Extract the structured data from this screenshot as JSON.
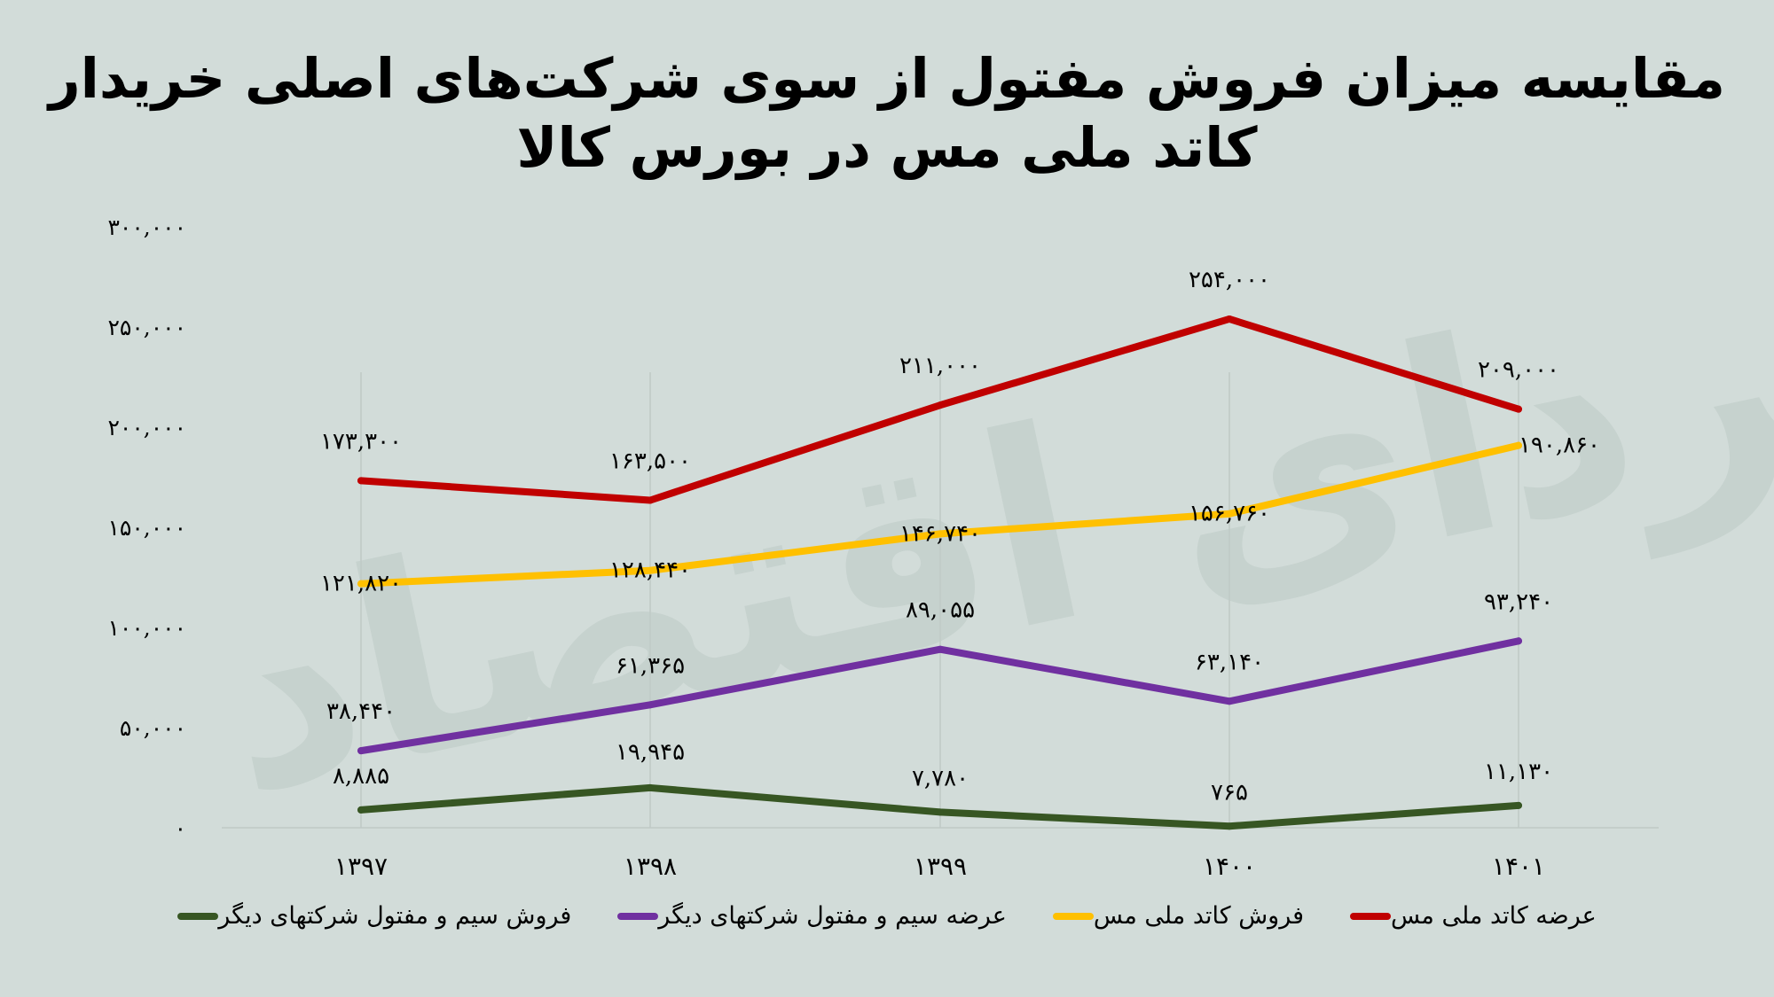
{
  "title_line1": "مقایسه میزان فروش مفتول از سوی شرکت‌های اصلی خریدار",
  "title_line2": "کاتد ملی مس در بورس کالا",
  "chart_data": {
    "type": "line",
    "title": "مقایسه میزان فروش مفتول از سوی شرکت‌های اصلی خریدار کاتد ملی مس در بورس کالا",
    "categories": [
      "۱۳۹۷",
      "۱۳۹۸",
      "۱۳۹۹",
      "۱۴۰۰",
      "۱۴۰۱"
    ],
    "ylim": [
      0,
      300000
    ],
    "yticks": [
      0,
      50000,
      100000,
      150000,
      200000,
      250000,
      300000
    ],
    "ytick_labels": [
      "۰",
      "۵۰,۰۰۰",
      "۱۰۰,۰۰۰",
      "۱۵۰,۰۰۰",
      "۲۰۰,۰۰۰",
      "۲۵۰,۰۰۰",
      "۳۰۰,۰۰۰"
    ],
    "grid": "vertical",
    "legend_position": "bottom",
    "series": [
      {
        "name": "عرضه کاتد ملی مس",
        "color": "#c00000",
        "values": [
          173300,
          163500,
          211000,
          254000,
          209000
        ],
        "labels": [
          "۱۷۳,۳۰۰",
          "۱۶۳,۵۰۰",
          "۲۱۱,۰۰۰",
          "۲۵۴,۰۰۰",
          "۲۰۹,۰۰۰"
        ]
      },
      {
        "name": "فروش کاتد ملی مس",
        "color": "#ffc000",
        "values": [
          121820,
          128440,
          146740,
          156760,
          190860
        ],
        "labels": [
          "۱۲۱,۸۲۰",
          "۱۲۸,۴۴۰",
          "۱۴۶,۷۴۰",
          "۱۵۶,۷۶۰",
          "۱۹۰,۸۶۰"
        ]
      },
      {
        "name": "عرضه سیم و مفتول شرکتهای دیگر",
        "color": "#7030a0",
        "values": [
          38440,
          61365,
          89055,
          63140,
          93240
        ],
        "labels": [
          "۳۸,۴۴۰",
          "۶۱,۳۶۵",
          "۸۹,۰۵۵",
          "۶۳,۱۴۰",
          "۹۳,۲۴۰"
        ]
      },
      {
        "name": "فروش سیم و مفتول شرکتهای دیگر",
        "color": "#375623",
        "values": [
          8885,
          19945,
          7780,
          765,
          11130
        ],
        "labels": [
          "۸,۸۸۵",
          "۱۹,۹۴۵",
          "۷,۷۸۰",
          "۷۶۵",
          "۱۱,۱۳۰"
        ]
      }
    ]
  }
}
